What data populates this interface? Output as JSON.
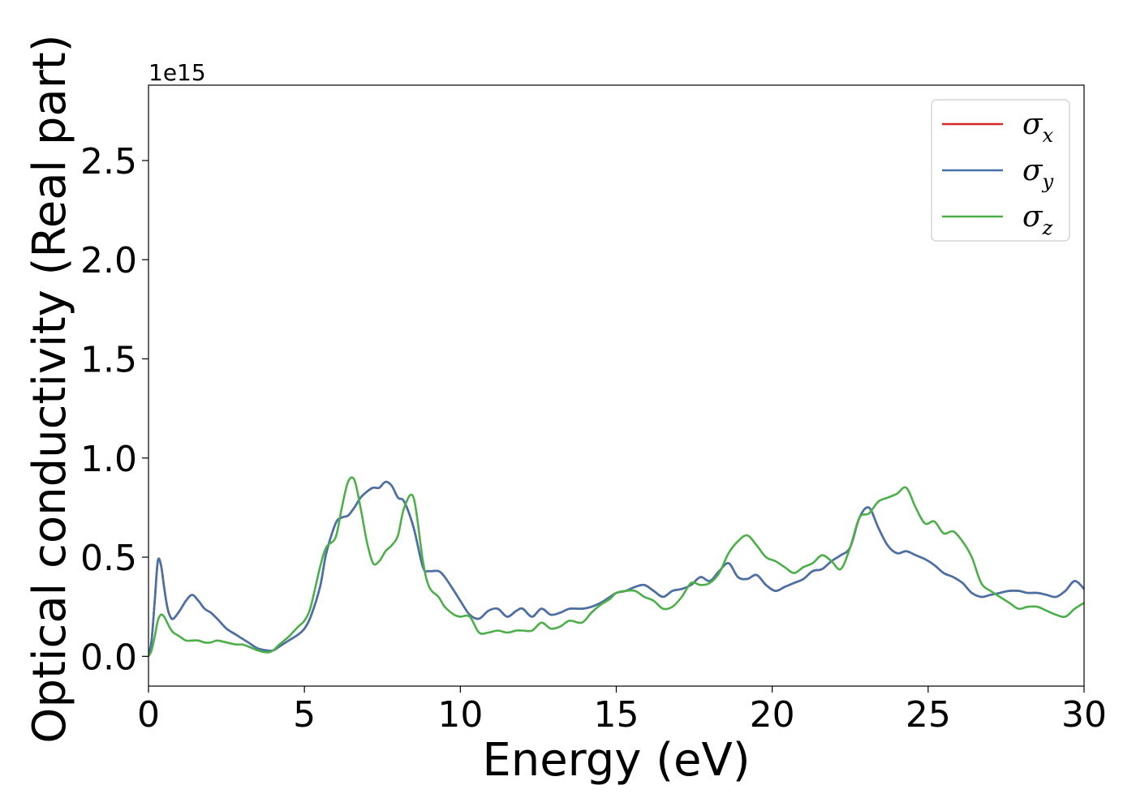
{
  "chart_data": {
    "type": "line",
    "xlabel": "Energy (eV)",
    "ylabel": "Optical conductivity (Real part)",
    "y_offset_label": "1e15",
    "xlim": [
      0,
      30
    ],
    "ylim": [
      -0.15,
      2.88
    ],
    "x_ticks": [
      0,
      5,
      10,
      15,
      20,
      25,
      30
    ],
    "x_tick_labels": [
      "0",
      "5",
      "10",
      "15",
      "20",
      "25",
      "30"
    ],
    "y_ticks": [
      0.0,
      0.5,
      1.0,
      1.5,
      2.0,
      2.5
    ],
    "y_tick_labels": [
      "0.0",
      "0.5",
      "1.0",
      "1.5",
      "2.0",
      "2.5"
    ],
    "grid": false,
    "legend_position": "top-right",
    "series": [
      {
        "name": "σx",
        "symbol": "σ",
        "subscript": "x",
        "color": "#d62728",
        "x": [
          0,
          0.1,
          0.2,
          0.3,
          0.4,
          0.5,
          0.6,
          0.7,
          0.8,
          1.0,
          1.2,
          1.4,
          1.6,
          1.8,
          2.0,
          2.2,
          2.5,
          2.8,
          3.0,
          3.2,
          3.5,
          3.8,
          4.0,
          4.2,
          4.5,
          4.8,
          5.0,
          5.2,
          5.5,
          5.7,
          6.0,
          6.2,
          6.4,
          6.6,
          6.8,
          7.0,
          7.2,
          7.4,
          7.6,
          7.8,
          8.0,
          8.2,
          8.5,
          8.8,
          9.0,
          9.3,
          9.5,
          9.8,
          10.0,
          10.3,
          10.6,
          10.9,
          11.2,
          11.5,
          11.8,
          12.0,
          12.3,
          12.6,
          12.9,
          13.2,
          13.5,
          13.9,
          14.2,
          14.5,
          14.8,
          15.0,
          15.3,
          15.6,
          15.9,
          16.2,
          16.5,
          16.8,
          17.1,
          17.4,
          17.7,
          18.0,
          18.3,
          18.6,
          18.9,
          19.2,
          19.5,
          19.8,
          20.1,
          20.4,
          20.7,
          21.0,
          21.3,
          21.6,
          21.9,
          22.2,
          22.5,
          22.8,
          23.1,
          23.4,
          23.7,
          24.0,
          24.3,
          24.6,
          24.9,
          25.2,
          25.5,
          25.8,
          26.1,
          26.4,
          26.7,
          27.0,
          27.3,
          27.6,
          27.9,
          28.2,
          28.5,
          28.8,
          29.1,
          29.4,
          29.7,
          30.0
        ],
        "values": [
          0.0,
          0.08,
          0.28,
          0.48,
          0.46,
          0.35,
          0.25,
          0.2,
          0.19,
          0.23,
          0.28,
          0.31,
          0.28,
          0.24,
          0.22,
          0.19,
          0.14,
          0.11,
          0.09,
          0.07,
          0.04,
          0.03,
          0.03,
          0.05,
          0.08,
          0.11,
          0.14,
          0.2,
          0.35,
          0.52,
          0.67,
          0.7,
          0.71,
          0.75,
          0.8,
          0.83,
          0.85,
          0.85,
          0.88,
          0.86,
          0.8,
          0.78,
          0.65,
          0.45,
          0.43,
          0.43,
          0.4,
          0.33,
          0.28,
          0.21,
          0.19,
          0.23,
          0.24,
          0.2,
          0.23,
          0.24,
          0.2,
          0.24,
          0.21,
          0.22,
          0.24,
          0.24,
          0.25,
          0.27,
          0.3,
          0.32,
          0.33,
          0.35,
          0.36,
          0.33,
          0.3,
          0.33,
          0.34,
          0.36,
          0.4,
          0.38,
          0.43,
          0.47,
          0.4,
          0.39,
          0.41,
          0.36,
          0.33,
          0.35,
          0.37,
          0.39,
          0.43,
          0.44,
          0.48,
          0.51,
          0.55,
          0.7,
          0.75,
          0.65,
          0.56,
          0.52,
          0.53,
          0.51,
          0.49,
          0.46,
          0.42,
          0.4,
          0.37,
          0.32,
          0.3,
          0.31,
          0.32,
          0.33,
          0.33,
          0.32,
          0.32,
          0.31,
          0.3,
          0.33,
          0.38,
          0.34
        ]
      },
      {
        "name": "σy",
        "symbol": "σ",
        "subscript": "y",
        "color": "#4672a8",
        "x": [
          0,
          0.1,
          0.2,
          0.3,
          0.4,
          0.5,
          0.6,
          0.7,
          0.8,
          1.0,
          1.2,
          1.4,
          1.6,
          1.8,
          2.0,
          2.2,
          2.5,
          2.8,
          3.0,
          3.2,
          3.5,
          3.8,
          4.0,
          4.2,
          4.5,
          4.8,
          5.0,
          5.2,
          5.5,
          5.7,
          6.0,
          6.2,
          6.4,
          6.6,
          6.8,
          7.0,
          7.2,
          7.4,
          7.6,
          7.8,
          8.0,
          8.2,
          8.5,
          8.8,
          9.0,
          9.3,
          9.5,
          9.8,
          10.0,
          10.3,
          10.6,
          10.9,
          11.2,
          11.5,
          11.8,
          12.0,
          12.3,
          12.6,
          12.9,
          13.2,
          13.5,
          13.9,
          14.2,
          14.5,
          14.8,
          15.0,
          15.3,
          15.6,
          15.9,
          16.2,
          16.5,
          16.8,
          17.1,
          17.4,
          17.7,
          18.0,
          18.3,
          18.6,
          18.9,
          19.2,
          19.5,
          19.8,
          20.1,
          20.4,
          20.7,
          21.0,
          21.3,
          21.6,
          21.9,
          22.2,
          22.5,
          22.8,
          23.1,
          23.4,
          23.7,
          24.0,
          24.3,
          24.6,
          24.9,
          25.2,
          25.5,
          25.8,
          26.1,
          26.4,
          26.7,
          27.0,
          27.3,
          27.6,
          27.9,
          28.2,
          28.5,
          28.8,
          29.1,
          29.4,
          29.7,
          30.0
        ],
        "values": [
          0.0,
          0.08,
          0.28,
          0.48,
          0.46,
          0.35,
          0.25,
          0.2,
          0.19,
          0.23,
          0.28,
          0.31,
          0.28,
          0.24,
          0.22,
          0.19,
          0.14,
          0.11,
          0.09,
          0.07,
          0.04,
          0.03,
          0.03,
          0.05,
          0.08,
          0.11,
          0.14,
          0.2,
          0.35,
          0.52,
          0.67,
          0.7,
          0.71,
          0.75,
          0.8,
          0.83,
          0.85,
          0.85,
          0.88,
          0.86,
          0.8,
          0.78,
          0.65,
          0.45,
          0.43,
          0.43,
          0.4,
          0.33,
          0.28,
          0.21,
          0.19,
          0.23,
          0.24,
          0.2,
          0.23,
          0.24,
          0.2,
          0.24,
          0.21,
          0.22,
          0.24,
          0.24,
          0.25,
          0.27,
          0.3,
          0.32,
          0.33,
          0.35,
          0.36,
          0.33,
          0.3,
          0.33,
          0.34,
          0.36,
          0.4,
          0.38,
          0.43,
          0.47,
          0.4,
          0.39,
          0.41,
          0.36,
          0.33,
          0.35,
          0.37,
          0.39,
          0.43,
          0.44,
          0.48,
          0.51,
          0.55,
          0.7,
          0.75,
          0.65,
          0.56,
          0.52,
          0.53,
          0.51,
          0.49,
          0.46,
          0.42,
          0.4,
          0.37,
          0.32,
          0.3,
          0.31,
          0.32,
          0.33,
          0.33,
          0.32,
          0.32,
          0.31,
          0.3,
          0.33,
          0.38,
          0.34
        ]
      },
      {
        "name": "σz",
        "symbol": "σ",
        "subscript": "z",
        "color": "#4daf4a",
        "x": [
          0,
          0.1,
          0.2,
          0.3,
          0.4,
          0.5,
          0.6,
          0.7,
          0.8,
          1.0,
          1.2,
          1.4,
          1.6,
          1.8,
          2.0,
          2.2,
          2.5,
          2.8,
          3.0,
          3.2,
          3.5,
          3.8,
          4.0,
          4.2,
          4.5,
          4.8,
          5.0,
          5.2,
          5.5,
          5.7,
          6.0,
          6.2,
          6.4,
          6.6,
          6.8,
          7.0,
          7.2,
          7.4,
          7.6,
          7.8,
          8.0,
          8.2,
          8.5,
          8.8,
          9.0,
          9.3,
          9.5,
          9.8,
          10.0,
          10.3,
          10.6,
          10.9,
          11.2,
          11.5,
          11.8,
          12.0,
          12.3,
          12.6,
          12.9,
          13.2,
          13.5,
          13.9,
          14.2,
          14.5,
          14.8,
          15.0,
          15.3,
          15.6,
          15.9,
          16.2,
          16.5,
          16.8,
          17.1,
          17.4,
          17.7,
          18.0,
          18.3,
          18.6,
          18.9,
          19.2,
          19.5,
          19.8,
          20.1,
          20.4,
          20.7,
          21.0,
          21.3,
          21.6,
          21.9,
          22.2,
          22.5,
          22.8,
          23.1,
          23.4,
          23.7,
          24.0,
          24.3,
          24.6,
          24.9,
          25.2,
          25.5,
          25.8,
          26.1,
          26.4,
          26.7,
          27.0,
          27.3,
          27.6,
          27.9,
          28.2,
          28.5,
          28.8,
          29.1,
          29.4,
          29.7,
          30.0
        ],
        "values": [
          0.0,
          0.03,
          0.1,
          0.18,
          0.21,
          0.2,
          0.17,
          0.14,
          0.12,
          0.1,
          0.08,
          0.08,
          0.08,
          0.07,
          0.07,
          0.08,
          0.07,
          0.06,
          0.06,
          0.05,
          0.03,
          0.02,
          0.03,
          0.06,
          0.1,
          0.15,
          0.18,
          0.25,
          0.45,
          0.55,
          0.6,
          0.75,
          0.88,
          0.89,
          0.75,
          0.58,
          0.47,
          0.48,
          0.53,
          0.56,
          0.61,
          0.75,
          0.8,
          0.48,
          0.35,
          0.3,
          0.25,
          0.21,
          0.2,
          0.2,
          0.12,
          0.12,
          0.13,
          0.12,
          0.13,
          0.13,
          0.13,
          0.17,
          0.14,
          0.15,
          0.18,
          0.17,
          0.22,
          0.26,
          0.29,
          0.32,
          0.33,
          0.33,
          0.3,
          0.28,
          0.24,
          0.25,
          0.3,
          0.37,
          0.36,
          0.37,
          0.42,
          0.52,
          0.58,
          0.61,
          0.56,
          0.5,
          0.48,
          0.45,
          0.42,
          0.45,
          0.47,
          0.51,
          0.48,
          0.44,
          0.55,
          0.7,
          0.72,
          0.78,
          0.8,
          0.82,
          0.85,
          0.75,
          0.67,
          0.68,
          0.62,
          0.63,
          0.58,
          0.5,
          0.37,
          0.33,
          0.3,
          0.27,
          0.24,
          0.25,
          0.25,
          0.23,
          0.21,
          0.2,
          0.24,
          0.27
        ]
      }
    ]
  }
}
